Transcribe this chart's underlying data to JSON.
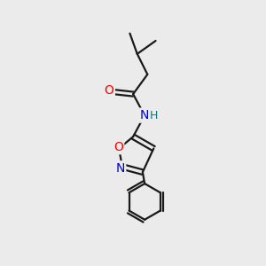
{
  "bg_color": "#ebebeb",
  "bond_color": "#1a1a1a",
  "bond_width": 1.6,
  "o_color": "#ff0000",
  "n_color": "#0000cc",
  "h_color": "#008080",
  "font_size": 10,
  "fig_size": [
    3.0,
    3.0
  ],
  "dpi": 100,
  "xlim": [
    -1.8,
    1.8
  ],
  "ylim": [
    -2.5,
    2.5
  ]
}
